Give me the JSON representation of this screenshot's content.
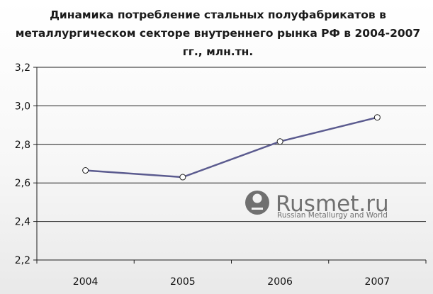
{
  "chart_data": {
    "type": "line",
    "title": "Динамика потребление стальных полуфабрикатов в металлургическом секторе внутреннего рынка РФ в 2004-2007 гг., млн.тн.",
    "categories": [
      "2004",
      "2005",
      "2006",
      "2007"
    ],
    "series": [
      {
        "values": [
          2.665,
          2.63,
          2.815,
          2.94
        ]
      }
    ],
    "ylim": [
      2.2,
      3.2
    ],
    "yticks": [
      "2,2",
      "2,4",
      "2,6",
      "2,8",
      "3,0",
      "3,2"
    ],
    "xlabel": "",
    "ylabel": "",
    "grid": true,
    "line_color": "#5b5b8f"
  },
  "watermark": {
    "brand": "Rusmet.ru",
    "tagline": "Russian Metallurgy and World"
  }
}
